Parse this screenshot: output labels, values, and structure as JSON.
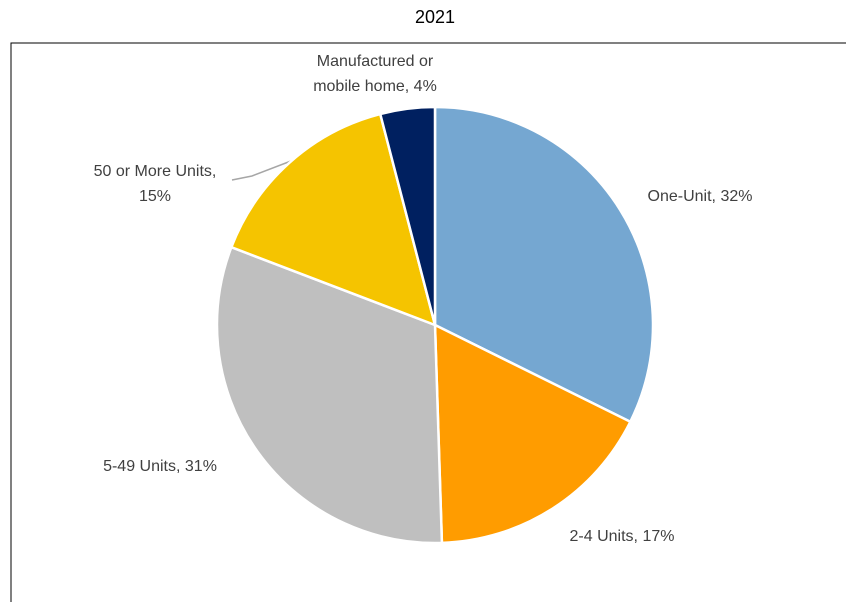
{
  "chart_data": {
    "type": "pie",
    "title": "2021",
    "labels": [
      "One-Unit, 32%",
      "2-4 Units, 17%",
      "5-49 Units, 31%",
      "50 or More Units, 15%",
      "Manufactured or mobile home, 4%"
    ],
    "values": [
      32,
      17,
      31,
      15,
      4
    ],
    "colors": [
      "#75a7d1",
      "#ff9c00",
      "#bfbfbf",
      "#f5c400",
      "#002060"
    ]
  }
}
